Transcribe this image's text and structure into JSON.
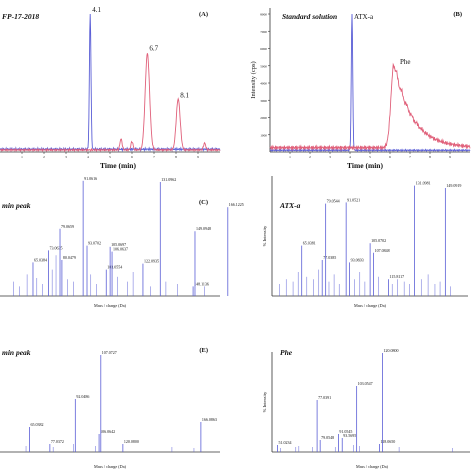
{
  "colors": {
    "blue": "#5b5fd6",
    "pink": "#e0607a",
    "axis": "#333333",
    "text": "#111111"
  },
  "chart_data": [
    {
      "id": "A",
      "type": "line",
      "title": "FP-17-2018",
      "panel_label": "(A)",
      "xlabel": "Time (min)",
      "ylabel": "",
      "xlim": [
        0,
        10
      ],
      "x_ticks": [
        1,
        2,
        3,
        4,
        5,
        6,
        7,
        8,
        9
      ],
      "ylim": [
        0,
        1
      ],
      "annotations": [
        {
          "label": "4.1",
          "x": 4.1,
          "y": 1.0
        },
        {
          "label": "6.7",
          "x": 6.7,
          "y": 0.72
        },
        {
          "label": "8.1",
          "x": 8.1,
          "y": 0.38
        }
      ],
      "series": [
        {
          "color_key": "blue",
          "peaks": [
            {
              "x": 4.1,
              "y": 1.0,
              "w": 0.035
            }
          ],
          "baseline": 0.02
        },
        {
          "color_key": "pink",
          "peaks": [
            {
              "x": 6.7,
              "y": 0.7,
              "w": 0.1
            },
            {
              "x": 8.1,
              "y": 0.37,
              "w": 0.09
            },
            {
              "x": 5.5,
              "y": 0.08,
              "w": 0.05
            },
            {
              "x": 6.0,
              "y": 0.06,
              "w": 0.05
            },
            {
              "x": 9.3,
              "y": 0.05,
              "w": 0.05
            }
          ],
          "baseline": 0.015
        }
      ]
    },
    {
      "id": "B",
      "type": "line",
      "title": "Standard solution",
      "panel_label": "(B)",
      "xlabel": "Time (min)",
      "ylabel": "Intensity (cps)",
      "xlim": [
        0,
        10
      ],
      "x_ticks": [
        1,
        2,
        3,
        4,
        5,
        6,
        7,
        8,
        9
      ],
      "ylim": [
        0,
        8000
      ],
      "y_ticks": [
        1000,
        2000,
        3000,
        4000,
        5000,
        6000,
        7000,
        8000
      ],
      "annotations": [
        {
          "label": "ATX-a",
          "x": 4.1,
          "y": 7600
        },
        {
          "label": "Phe",
          "x": 6.4,
          "y": 5000
        }
      ],
      "series": [
        {
          "color_key": "blue",
          "peaks": [
            {
              "x": 4.1,
              "y": 8000,
              "w": 0.035
            }
          ],
          "baseline": 100
        },
        {
          "color_key": "pink",
          "tailing_peak": {
            "x": 6.2,
            "y": 4900,
            "rise": 0.15,
            "decay": 0.9
          },
          "baseline": 250
        }
      ]
    },
    {
      "id": "C",
      "type": "bar",
      "title": "min peak",
      "panel_label": "(C)",
      "xlabel": "Mass / charge (Da)",
      "ylabel": "",
      "xlim": [
        50,
        160
      ],
      "ylim": [
        0,
        100
      ],
      "labeled_peaks": [
        {
          "mz": 65.0384,
          "label": "65.0384",
          "y": 28
        },
        {
          "mz": 73.0635,
          "label": "73.0635",
          "y": 38
        },
        {
          "mz": 79.0659,
          "label": "79.0659",
          "y": 56
        },
        {
          "mz": 80.0479,
          "label": "80.0479",
          "y": 30
        },
        {
          "mz": 91.0616,
          "label": "91.0616",
          "y": 96
        },
        {
          "mz": 93.0702,
          "label": "93.0702",
          "y": 42
        },
        {
          "mz": 103.0554,
          "label": "103.0554",
          "y": 22
        },
        {
          "mz": 105.0697,
          "label": "105.0697",
          "y": 41
        },
        {
          "mz": 106.0637,
          "label": "106.0637",
          "y": 37
        },
        {
          "mz": 122.0935,
          "label": "122.0935",
          "y": 27
        },
        {
          "mz": 131.0962,
          "label": "131.0962",
          "y": 95
        },
        {
          "mz": 148.1136,
          "label": "148.1136",
          "y": 8
        },
        {
          "mz": 149.0948,
          "label": "149.0948",
          "y": 54
        },
        {
          "mz": 166.1225,
          "label": "166.1225",
          "y": 74
        }
      ],
      "minor_peaks": [
        {
          "mz": 55,
          "y": 12
        },
        {
          "mz": 58,
          "y": 8
        },
        {
          "mz": 62,
          "y": 18
        },
        {
          "mz": 67,
          "y": 15
        },
        {
          "mz": 70,
          "y": 10
        },
        {
          "mz": 75,
          "y": 22
        },
        {
          "mz": 77,
          "y": 34
        },
        {
          "mz": 83,
          "y": 14
        },
        {
          "mz": 86,
          "y": 12
        },
        {
          "mz": 95,
          "y": 18
        },
        {
          "mz": 98,
          "y": 10
        },
        {
          "mz": 109,
          "y": 16
        },
        {
          "mz": 114,
          "y": 12
        },
        {
          "mz": 117,
          "y": 20
        },
        {
          "mz": 126,
          "y": 8
        },
        {
          "mz": 134,
          "y": 12
        },
        {
          "mz": 140,
          "y": 10
        },
        {
          "mz": 154,
          "y": 8
        }
      ]
    },
    {
      "id": "D",
      "type": "bar",
      "title": "ATX-a",
      "panel_label": "",
      "xlabel": "Mass / charge (Da)",
      "ylabel": "% Intensity",
      "xlim": [
        50,
        160
      ],
      "ylim": [
        0,
        100
      ],
      "labeled_peaks": [
        {
          "mz": 65.0381,
          "label": "65.0381",
          "y": 42
        },
        {
          "mz": 77.0385,
          "label": "77.0385",
          "y": 30
        },
        {
          "mz": 79.0544,
          "label": "79.0544",
          "y": 77
        },
        {
          "mz": 91.0521,
          "label": "91.0521",
          "y": 78
        },
        {
          "mz": 93.0693,
          "label": "93.0693",
          "y": 28
        },
        {
          "mz": 105.0702,
          "label": "105.0702",
          "y": 44
        },
        {
          "mz": 107.0848,
          "label": "107.0848",
          "y": 36
        },
        {
          "mz": 115.8117,
          "label": "115.8117",
          "y": 14
        },
        {
          "mz": 131.0981,
          "label": "131.0981",
          "y": 92
        },
        {
          "mz": 149.0919,
          "label": "149.0919",
          "y": 90
        }
      ],
      "minor_peaks": [
        {
          "mz": 52,
          "y": 10
        },
        {
          "mz": 56,
          "y": 14
        },
        {
          "mz": 60,
          "y": 12
        },
        {
          "mz": 63,
          "y": 20
        },
        {
          "mz": 68,
          "y": 16
        },
        {
          "mz": 72,
          "y": 14
        },
        {
          "mz": 75,
          "y": 22
        },
        {
          "mz": 81,
          "y": 12
        },
        {
          "mz": 84,
          "y": 18
        },
        {
          "mz": 87,
          "y": 10
        },
        {
          "mz": 96,
          "y": 14
        },
        {
          "mz": 99,
          "y": 20
        },
        {
          "mz": 102,
          "y": 12
        },
        {
          "mz": 110,
          "y": 16
        },
        {
          "mz": 118,
          "y": 10
        },
        {
          "mz": 121,
          "y": 14
        },
        {
          "mz": 125,
          "y": 12
        },
        {
          "mz": 128,
          "y": 10
        },
        {
          "mz": 135,
          "y": 14
        },
        {
          "mz": 139,
          "y": 18
        },
        {
          "mz": 143,
          "y": 10
        },
        {
          "mz": 146,
          "y": 12
        },
        {
          "mz": 152,
          "y": 8
        }
      ]
    },
    {
      "id": "E",
      "type": "bar",
      "title": "min peak",
      "panel_label": "(E)",
      "xlabel": "Mass / charge (Da)",
      "ylabel": "",
      "xlim": [
        50,
        175
      ],
      "ylim": [
        0,
        100
      ],
      "labeled_peaks": [
        {
          "mz": 65.0382,
          "label": "65.0382",
          "y": 25
        },
        {
          "mz": 77.0372,
          "label": "77.0372",
          "y": 8
        },
        {
          "mz": 92.0486,
          "label": "92.0486",
          "y": 53
        },
        {
          "mz": 106.0642,
          "label": "106.0642",
          "y": 18
        },
        {
          "mz": 107.0727,
          "label": "107.0727",
          "y": 97
        },
        {
          "mz": 120.08,
          "label": "120.0800",
          "y": 8
        },
        {
          "mz": 166.0863,
          "label": "166.0863",
          "y": 30
        }
      ],
      "minor_peaks": [
        {
          "mz": 63,
          "y": 6
        },
        {
          "mz": 79,
          "y": 5
        },
        {
          "mz": 91,
          "y": 8
        },
        {
          "mz": 104,
          "y": 6
        },
        {
          "mz": 149,
          "y": 5
        },
        {
          "mz": 162,
          "y": 4
        }
      ]
    },
    {
      "id": "F",
      "type": "bar",
      "title": "Phe",
      "panel_label": "",
      "xlabel": "Mass / charge (Da)",
      "ylabel": "% Intensity",
      "xlim": [
        50,
        175
      ],
      "ylim": [
        0,
        100
      ],
      "labeled_peaks": [
        {
          "mz": 51.0234,
          "label": "51.0234",
          "y": 7
        },
        {
          "mz": 77.0391,
          "label": "77.0391",
          "y": 52
        },
        {
          "mz": 79.0548,
          "label": "79.0548",
          "y": 12
        },
        {
          "mz": 91.0545,
          "label": "91.0545",
          "y": 18
        },
        {
          "mz": 93.5695,
          "label": "93.5695",
          "y": 14
        },
        {
          "mz": 103.0547,
          "label": "103.0547",
          "y": 66
        },
        {
          "mz": 120.08,
          "label": "120.0800",
          "y": 99
        },
        {
          "mz": 118.065,
          "label": "118.0650",
          "y": 8
        }
      ],
      "minor_peaks": [
        {
          "mz": 53,
          "y": 4
        },
        {
          "mz": 63,
          "y": 5
        },
        {
          "mz": 65,
          "y": 6
        },
        {
          "mz": 74,
          "y": 5
        },
        {
          "mz": 89,
          "y": 5
        },
        {
          "mz": 101,
          "y": 7
        },
        {
          "mz": 105,
          "y": 6
        },
        {
          "mz": 131,
          "y": 5
        },
        {
          "mz": 166,
          "y": 4
        }
      ]
    }
  ]
}
